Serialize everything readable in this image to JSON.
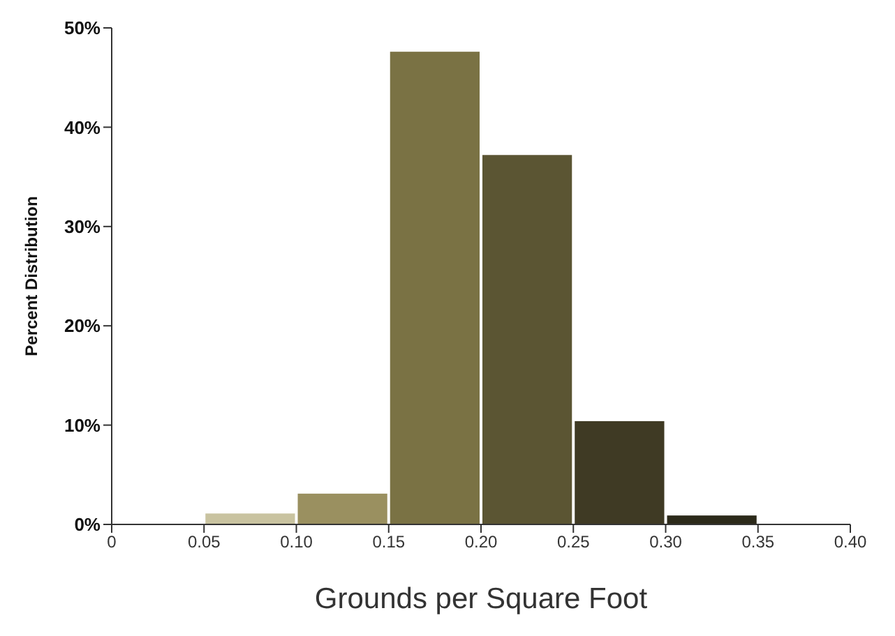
{
  "chart_data": {
    "type": "histogram",
    "xlabel": "Grounds per Square Foot",
    "ylabel": "Percent Distribution",
    "bins": [
      0.05,
      0.1,
      0.15,
      0.2,
      0.25,
      0.3,
      0.35
    ],
    "values": [
      1.1,
      3.1,
      47.6,
      37.2,
      10.4,
      0.9
    ],
    "colors": [
      "#c9c3a0",
      "#9a9060",
      "#7a7244",
      "#5b5533",
      "#3f3a24",
      "#2c2a1a"
    ],
    "xlim": [
      0,
      0.4
    ],
    "xticks": [
      0,
      {
        "value": 0.05,
        "label": "0.05"
      },
      {
        "value": 0.1,
        "label": "0.10"
      },
      {
        "value": 0.15,
        "label": "0.15"
      },
      {
        "value": 0.2,
        "label": "0.20"
      },
      {
        "value": 0.25,
        "label": "0.25"
      },
      {
        "value": 0.3,
        "label": "0.30"
      },
      {
        "value": 0.35,
        "label": "0.35"
      },
      {
        "value": 0.4,
        "label": "0.40"
      }
    ],
    "ylim": [
      0,
      50
    ],
    "yticks": [
      {
        "value": 0,
        "label": "0%"
      },
      {
        "value": 10,
        "label": "10%"
      },
      {
        "value": 20,
        "label": "20%"
      },
      {
        "value": 30,
        "label": "30%"
      },
      {
        "value": 40,
        "label": "40%"
      },
      {
        "value": 50,
        "label": "50%"
      }
    ],
    "grid": false
  }
}
